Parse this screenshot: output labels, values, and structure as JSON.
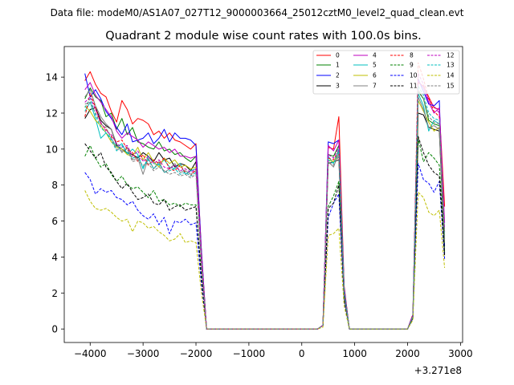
{
  "suptitle": "Data file: modeM0/AS1A07_027T12_9000003664_25012cztM0_level2_quad_clean.evt",
  "chart_data": {
    "type": "line",
    "title": "Quadrant 2 module wise count rates with 100.0s bins.",
    "xlabel": "",
    "ylabel": "",
    "x_offset_label": "+3.271e8",
    "xlim": [
      -4490,
      3040
    ],
    "ylim": [
      -0.75,
      15.7
    ],
    "x_ticks": [
      -4000,
      -3000,
      -2000,
      -1000,
      0,
      1000,
      2000,
      3000
    ],
    "x_tick_labels": [
      "−4000",
      "−3000",
      "−2000",
      "−1000",
      "0",
      "1000",
      "2000",
      "3000"
    ],
    "y_ticks": [
      0,
      2,
      4,
      6,
      8,
      10,
      12,
      14
    ],
    "y_tick_labels": [
      "0",
      "2",
      "4",
      "6",
      "8",
      "10",
      "12",
      "14"
    ],
    "x": [
      -4100,
      -4000,
      -3900,
      -3800,
      -3700,
      -3600,
      -3500,
      -3400,
      -3300,
      -3200,
      -3100,
      -3000,
      -2900,
      -2800,
      -2700,
      -2600,
      -2500,
      -2400,
      -2300,
      -2200,
      -2100,
      -2000,
      -1900,
      -1800,
      -1700,
      -1600,
      -1500,
      -1400,
      -1300,
      -1200,
      -1100,
      -1000,
      -900,
      -800,
      -700,
      -600,
      -500,
      -400,
      -300,
      -200,
      -100,
      0,
      100,
      200,
      300,
      400,
      500,
      600,
      700,
      800,
      900,
      1000,
      1100,
      1200,
      1300,
      1400,
      1500,
      1600,
      1700,
      1800,
      1900,
      2000,
      2100,
      2200,
      2300,
      2400,
      2500,
      2600,
      2700
    ],
    "series": [
      {
        "name": "0",
        "color": "#ff0000",
        "dash": false,
        "values": [
          13.8,
          14.3,
          13.6,
          13.1,
          12.9,
          12.1,
          11.5,
          12.7,
          12.2,
          11.4,
          11.7,
          11.6,
          11.4,
          10.8,
          11.0,
          10.6,
          10.9,
          10.5,
          10.4,
          10.2,
          10.0,
          10.3,
          4.5,
          0.0,
          0,
          0,
          0,
          0,
          0,
          0,
          0,
          0,
          0,
          0,
          0,
          0,
          0,
          0,
          0,
          0,
          0,
          0,
          0,
          0,
          0,
          0.2,
          10.1,
          10.0,
          11.8,
          2.4,
          0.0,
          0,
          0,
          0,
          0,
          0,
          0,
          0,
          0,
          0,
          0,
          0,
          0.8,
          13.7,
          13.5,
          12.9,
          12.3,
          12.2,
          6.8
        ]
      },
      {
        "name": "1",
        "color": "#008000",
        "dash": false,
        "values": [
          12.8,
          13.4,
          12.9,
          12.7,
          11.8,
          12.0,
          11.1,
          11.7,
          10.8,
          11.2,
          10.4,
          10.3,
          10.1,
          10.0,
          10.4,
          9.9,
          10.0,
          9.7,
          9.8,
          9.5,
          9.3,
          9.6,
          4.2,
          0.0,
          0,
          0,
          0,
          0,
          0,
          0,
          0,
          0,
          0,
          0,
          0,
          0,
          0,
          0,
          0,
          0,
          0,
          0,
          0,
          0,
          0,
          0.2,
          9.7,
          9.6,
          10.2,
          2.2,
          0.0,
          0,
          0,
          0,
          0,
          0,
          0,
          0,
          0,
          0,
          0,
          0,
          0.7,
          13.2,
          12.8,
          11.6,
          11.4,
          11.3,
          5.2
        ]
      },
      {
        "name": "2",
        "color": "#0000ff",
        "dash": false,
        "values": [
          14.2,
          12.9,
          13.3,
          12.8,
          12.1,
          11.7,
          11.2,
          10.8,
          11.4,
          10.4,
          10.5,
          10.6,
          10.9,
          10.3,
          10.6,
          11.1,
          10.4,
          10.9,
          10.6,
          10.6,
          10.5,
          10.2,
          4.5,
          0.0,
          0,
          0,
          0,
          0,
          0,
          0,
          0,
          0,
          0,
          0,
          0,
          0,
          0,
          0,
          0,
          0,
          0,
          0,
          0,
          0,
          0,
          0.2,
          10.4,
          10.3,
          10.5,
          2.3,
          0.0,
          0,
          0,
          0,
          0,
          0,
          0,
          0,
          0,
          0,
          0,
          0,
          0.8,
          13.9,
          13.2,
          12.5,
          12.4,
          12.7,
          4.6
        ]
      },
      {
        "name": "3",
        "color": "#000000",
        "dash": false,
        "values": [
          11.7,
          12.2,
          12.3,
          11.6,
          11.3,
          11.1,
          10.2,
          10.0,
          9.8,
          9.7,
          9.5,
          9.8,
          9.6,
          9.3,
          9.8,
          9.4,
          9.5,
          9.0,
          9.2,
          9.1,
          8.8,
          9.3,
          4.0,
          0.0,
          0,
          0,
          0,
          0,
          0,
          0,
          0,
          0,
          0,
          0,
          0,
          0,
          0,
          0,
          0,
          0,
          0,
          0,
          0,
          0,
          0,
          0.2,
          9.2,
          9.3,
          9.4,
          2.1,
          0.0,
          0,
          0,
          0,
          0,
          0,
          0,
          0,
          0,
          0,
          0,
          0,
          0.7,
          12.0,
          11.9,
          11.2,
          11.1,
          11.0,
          4.2
        ]
      },
      {
        "name": "4",
        "color": "#bf00bf",
        "dash": false,
        "values": [
          13.3,
          13.7,
          13.0,
          12.6,
          12.2,
          11.8,
          11.0,
          10.6,
          10.9,
          10.7,
          10.5,
          10.1,
          10.4,
          10.2,
          10.0,
          10.1,
          9.8,
          10.0,
          9.6,
          9.6,
          9.5,
          9.6,
          4.3,
          0.0,
          0,
          0,
          0,
          0,
          0,
          0,
          0,
          0,
          0,
          0,
          0,
          0,
          0,
          0,
          0,
          0,
          0,
          0,
          0,
          0,
          0,
          0.2,
          10.2,
          9.9,
          10.5,
          2.2,
          0.0,
          0,
          0,
          0,
          0,
          0,
          0,
          0,
          0,
          0,
          0,
          0,
          0.7,
          13.8,
          13.4,
          12.6,
          12.0,
          12.3,
          5.9
        ]
      },
      {
        "name": "5",
        "color": "#00bfbf",
        "dash": false,
        "values": [
          12.1,
          12.6,
          11.7,
          10.6,
          10.9,
          10.6,
          10.1,
          10.3,
          9.7,
          10.0,
          9.7,
          8.9,
          9.6,
          9.2,
          9.1,
          9.4,
          9.0,
          8.9,
          9.2,
          8.6,
          8.8,
          8.9,
          3.9,
          0.0,
          0,
          0,
          0,
          0,
          0,
          0,
          0,
          0,
          0,
          0,
          0,
          0,
          0,
          0,
          0,
          0,
          0,
          0,
          0,
          0,
          0,
          0.2,
          9.6,
          9.2,
          10.0,
          2.1,
          0.0,
          0,
          0,
          0,
          0,
          0,
          0,
          0,
          0,
          0,
          0,
          0,
          0.7,
          13.1,
          12.4,
          11.0,
          11.6,
          11.4,
          5.1
        ]
      },
      {
        "name": "6",
        "color": "#bfbf00",
        "dash": false,
        "values": [
          12.4,
          12.1,
          11.6,
          11.3,
          10.9,
          10.4,
          10.1,
          10.0,
          9.7,
          9.6,
          10.1,
          9.4,
          9.8,
          9.3,
          9.0,
          9.5,
          9.2,
          9.4,
          9.0,
          9.1,
          8.9,
          9.0,
          3.9,
          0.0,
          0,
          0,
          0,
          0,
          0,
          0,
          0,
          0,
          0,
          0,
          0,
          0,
          0,
          0,
          0,
          0,
          0,
          0,
          0,
          0,
          0,
          0.2,
          9.4,
          9.3,
          9.7,
          2.1,
          0.0,
          0,
          0,
          0,
          0,
          0,
          0,
          0,
          0,
          0,
          0,
          0,
          0.7,
          12.7,
          12.1,
          11.5,
          11.0,
          11.2,
          5.0
        ]
      },
      {
        "name": "7",
        "color": "#808080",
        "dash": false,
        "values": [
          12.9,
          13.3,
          12.4,
          11.8,
          11.4,
          11.1,
          10.3,
          9.8,
          10.1,
          9.4,
          9.5,
          8.6,
          9.5,
          8.9,
          9.3,
          8.7,
          8.9,
          9.2,
          8.7,
          8.8,
          8.6,
          8.8,
          3.8,
          0.0,
          0,
          0,
          0,
          0,
          0,
          0,
          0,
          0,
          0,
          0,
          0,
          0,
          0,
          0,
          0,
          0,
          0,
          0,
          0,
          0,
          0,
          0.2,
          9.3,
          9.0,
          9.8,
          2.0,
          0.0,
          0,
          0,
          0,
          0,
          0,
          0,
          0,
          0,
          0,
          0,
          0,
          0.7,
          12.9,
          12.2,
          11.2,
          11.3,
          11.1,
          4.8
        ]
      },
      {
        "name": "8",
        "color": "#ff0000",
        "dash": true,
        "values": [
          11.8,
          13.1,
          12.3,
          11.4,
          11.1,
          10.7,
          10.4,
          10.5,
          10.0,
          9.8,
          9.3,
          9.7,
          9.1,
          9.4,
          9.2,
          9.5,
          8.9,
          8.8,
          9.1,
          8.7,
          8.5,
          8.9,
          3.9,
          0.0,
          0,
          0,
          0,
          0,
          0,
          0,
          0,
          0,
          0,
          0,
          0,
          0,
          0,
          0,
          0,
          0,
          0,
          0,
          0,
          0,
          0,
          0.2,
          9.5,
          9.4,
          9.9,
          2.1,
          0.0,
          0,
          0,
          0,
          0,
          0,
          0,
          0,
          0,
          0,
          0,
          0,
          0.8,
          14.8,
          13.9,
          12.8,
          12.1,
          11.8,
          5.4
        ]
      },
      {
        "name": "9",
        "color": "#008000",
        "dash": true,
        "values": [
          9.6,
          10.2,
          9.5,
          9.0,
          9.2,
          8.6,
          8.2,
          8.5,
          8.0,
          7.8,
          7.9,
          7.6,
          7.3,
          7.7,
          7.1,
          7.2,
          6.9,
          7.0,
          6.8,
          7.0,
          6.9,
          6.9,
          3.1,
          0.0,
          0,
          0,
          0,
          0,
          0,
          0,
          0,
          0,
          0,
          0,
          0,
          0,
          0,
          0,
          0,
          0,
          0,
          0,
          0,
          0,
          0,
          0.2,
          6.8,
          7.4,
          8.2,
          1.8,
          0.0,
          0,
          0,
          0,
          0,
          0,
          0,
          0,
          0,
          0,
          0,
          0,
          0.6,
          10.6,
          9.3,
          9.8,
          9.5,
          9.1,
          4.3
        ]
      },
      {
        "name": "10",
        "color": "#0000ff",
        "dash": true,
        "values": [
          8.7,
          8.3,
          7.5,
          7.8,
          7.6,
          7.7,
          7.3,
          7.2,
          6.9,
          7.1,
          6.6,
          6.3,
          6.1,
          6.4,
          5.8,
          6.2,
          5.3,
          6.0,
          5.9,
          6.1,
          5.8,
          5.9,
          2.6,
          0.0,
          0,
          0,
          0,
          0,
          0,
          0,
          0,
          0,
          0,
          0,
          0,
          0,
          0,
          0,
          0,
          0,
          0,
          0,
          0,
          0,
          0,
          0.2,
          6.2,
          7.0,
          7.5,
          1.6,
          0.0,
          0,
          0,
          0,
          0,
          0,
          0,
          0,
          0,
          0,
          0,
          0,
          0.6,
          9.2,
          8.3,
          8.1,
          7.6,
          8.2,
          3.9
        ]
      },
      {
        "name": "11",
        "color": "#000000",
        "dash": true,
        "values": [
          10.3,
          9.9,
          9.5,
          9.8,
          9.0,
          8.7,
          8.2,
          7.8,
          8.1,
          7.6,
          7.2,
          7.3,
          7.5,
          7.0,
          6.9,
          7.2,
          6.6,
          6.8,
          6.9,
          6.6,
          6.7,
          6.8,
          3.0,
          0.0,
          0,
          0,
          0,
          0,
          0,
          0,
          0,
          0,
          0,
          0,
          0,
          0,
          0,
          0,
          0,
          0,
          0,
          0,
          0,
          0,
          0,
          0.2,
          6.7,
          7.0,
          8.0,
          1.7,
          0.0,
          0,
          0,
          0,
          0,
          0,
          0,
          0,
          0,
          0,
          0,
          0,
          0.6,
          10.7,
          9.8,
          9.1,
          8.7,
          8.5,
          4.1
        ]
      },
      {
        "name": "12",
        "color": "#bf00bf",
        "dash": true,
        "values": [
          12.6,
          12.9,
          12.2,
          11.5,
          11.0,
          10.8,
          10.3,
          10.1,
          10.2,
          9.6,
          9.9,
          9.3,
          9.6,
          9.2,
          9.4,
          9.0,
          8.9,
          9.1,
          8.8,
          8.9,
          8.7,
          8.9,
          3.9,
          0.0,
          0,
          0,
          0,
          0,
          0,
          0,
          0,
          0,
          0,
          0,
          0,
          0,
          0,
          0,
          0,
          0,
          0,
          0,
          0,
          0,
          0,
          0.2,
          9.7,
          9.5,
          10.1,
          2.1,
          0.0,
          0,
          0,
          0,
          0,
          0,
          0,
          0,
          0,
          0,
          0,
          0,
          0.8,
          14.2,
          13.6,
          12.7,
          12.4,
          12.0,
          5.6
        ]
      },
      {
        "name": "13",
        "color": "#00bfbf",
        "dash": true,
        "values": [
          12.3,
          12.8,
          11.9,
          11.2,
          10.9,
          10.5,
          9.9,
          10.2,
          9.8,
          9.5,
          9.6,
          9.0,
          9.4,
          8.9,
          9.2,
          8.7,
          8.8,
          8.9,
          8.6,
          8.7,
          8.5,
          8.7,
          3.8,
          0.0,
          0,
          0,
          0,
          0,
          0,
          0,
          0,
          0,
          0,
          0,
          0,
          0,
          0,
          0,
          0,
          0,
          0,
          0,
          0,
          0,
          0,
          0.2,
          9.4,
          9.2,
          9.9,
          2.1,
          0.0,
          0,
          0,
          0,
          0,
          0,
          0,
          0,
          0,
          0,
          0,
          0,
          0.7,
          13.5,
          13.0,
          12.0,
          11.7,
          11.6,
          5.2
        ]
      },
      {
        "name": "14",
        "color": "#bfbf00",
        "dash": true,
        "values": [
          7.7,
          7.1,
          6.7,
          6.6,
          6.7,
          6.5,
          6.2,
          6.0,
          6.1,
          5.4,
          6.0,
          5.9,
          5.6,
          5.7,
          5.4,
          5.2,
          4.9,
          5.0,
          5.3,
          4.8,
          4.9,
          4.8,
          2.1,
          0.0,
          0,
          0,
          0,
          0,
          0,
          0,
          0,
          0,
          0,
          0,
          0,
          0,
          0,
          0,
          0,
          0,
          0,
          0,
          0,
          0,
          0,
          0.1,
          5.2,
          5.3,
          5.6,
          1.3,
          0.0,
          0,
          0,
          0,
          0,
          0,
          0,
          0,
          0,
          0,
          0,
          0,
          0.5,
          7.6,
          7.3,
          6.5,
          6.3,
          6.6,
          3.4
        ]
      },
      {
        "name": "15",
        "color": "#808080",
        "dash": true,
        "values": [
          12.5,
          12.6,
          12.0,
          11.4,
          11.2,
          10.6,
          10.0,
          9.9,
          10.0,
          9.3,
          9.4,
          9.1,
          9.2,
          8.8,
          9.0,
          8.8,
          8.6,
          8.7,
          8.5,
          8.6,
          8.4,
          8.6,
          3.8,
          0.0,
          0,
          0,
          0,
          0,
          0,
          0,
          0,
          0,
          0,
          0,
          0,
          0,
          0,
          0,
          0,
          0,
          0,
          0,
          0,
          0,
          0,
          0.2,
          9.3,
          9.1,
          9.6,
          2.0,
          0.0,
          0,
          0,
          0,
          0,
          0,
          0,
          0,
          0,
          0,
          0,
          0,
          0.7,
          13.3,
          12.8,
          11.8,
          11.5,
          11.4,
          5.0
        ]
      }
    ],
    "legend": {
      "location": "top-right",
      "columns": 4
    }
  }
}
